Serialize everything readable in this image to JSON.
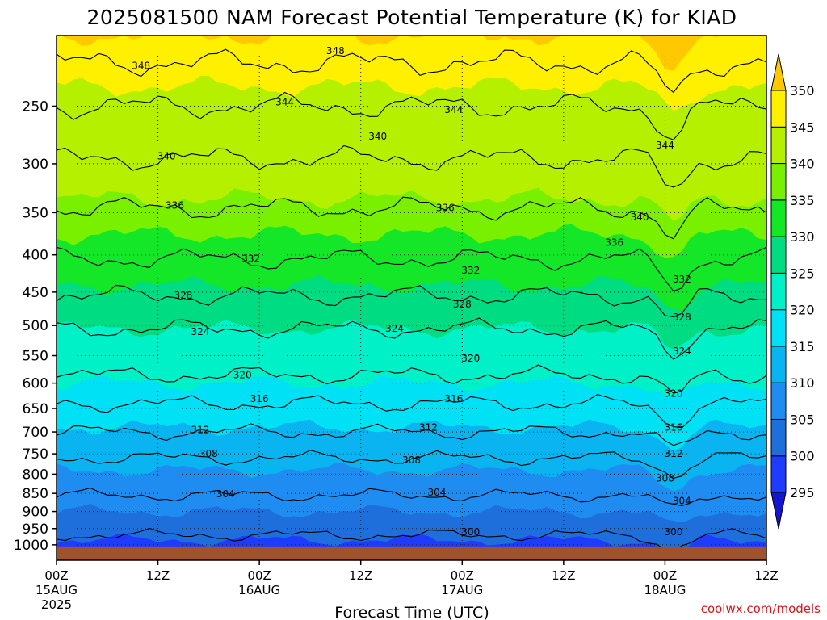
{
  "title": "2025081500 NAM Forecast Potential Temperature (K) for KIAD",
  "xlabel": "Forecast Time (UTC)",
  "credit": "coolwx.com/models",
  "chart_data": {
    "type": "contour",
    "title": "2025081500 NAM Forecast Potential Temperature (K) for KIAD",
    "xlabel": "Forecast Time (UTC)",
    "ylabel": "",
    "x_hours_range": [
      0,
      84
    ],
    "y_pressure_range": [
      1050,
      200
    ],
    "y_scale": "log",
    "y_ticks": [
      250,
      300,
      350,
      400,
      450,
      500,
      550,
      600,
      650,
      700,
      750,
      800,
      850,
      900,
      950,
      1000
    ],
    "x_ticks": [
      {
        "hour": 0,
        "label": "00Z",
        "date": "15AUG",
        "year": "2025"
      },
      {
        "hour": 12,
        "label": "12Z",
        "date": "",
        "year": ""
      },
      {
        "hour": 24,
        "label": "00Z",
        "date": "16AUG",
        "year": ""
      },
      {
        "hour": 36,
        "label": "12Z",
        "date": "",
        "year": ""
      },
      {
        "hour": 48,
        "label": "00Z",
        "date": "17AUG",
        "year": ""
      },
      {
        "hour": 60,
        "label": "12Z",
        "date": "",
        "year": ""
      },
      {
        "hour": 72,
        "label": "00Z",
        "date": "18AUG",
        "year": ""
      },
      {
        "hour": 84,
        "label": "12Z",
        "date": "",
        "year": ""
      }
    ],
    "grid": true,
    "colorbar": {
      "levels": [
        295,
        300,
        305,
        310,
        315,
        320,
        325,
        330,
        335,
        340,
        345,
        350
      ],
      "colors": [
        "#1414d2",
        "#1e3cff",
        "#1e6edc",
        "#1e8cf0",
        "#0ab4f0",
        "#00e1f5",
        "#00f0c8",
        "#00dc82",
        "#14e628",
        "#78f000",
        "#b4f000",
        "#fff000",
        "#ffc800"
      ]
    },
    "contour_interval": 4,
    "contours": [
      {
        "value": 300,
        "level_pressure": 970,
        "labels": [
          {
            "hour": 49,
            "pressure": 960
          },
          {
            "hour": 73,
            "pressure": 960
          }
        ]
      },
      {
        "value": 304,
        "level_pressure": 855,
        "labels": [
          {
            "hour": 20,
            "pressure": 852
          },
          {
            "hour": 45,
            "pressure": 848
          },
          {
            "hour": 74,
            "pressure": 870
          }
        ]
      },
      {
        "value": 308,
        "level_pressure": 760,
        "labels": [
          {
            "hour": 18,
            "pressure": 750
          },
          {
            "hour": 42,
            "pressure": 765
          },
          {
            "hour": 72,
            "pressure": 810
          }
        ]
      },
      {
        "value": 312,
        "level_pressure": 700,
        "labels": [
          {
            "hour": 17,
            "pressure": 695
          },
          {
            "hour": 44,
            "pressure": 690
          },
          {
            "hour": 73,
            "pressure": 750
          }
        ]
      },
      {
        "value": 316,
        "level_pressure": 640,
        "labels": [
          {
            "hour": 24,
            "pressure": 630
          },
          {
            "hour": 47,
            "pressure": 630
          },
          {
            "hour": 73,
            "pressure": 690
          }
        ]
      },
      {
        "value": 320,
        "level_pressure": 585,
        "labels": [
          {
            "hour": 22,
            "pressure": 585
          },
          {
            "hour": 49,
            "pressure": 555
          },
          {
            "hour": 73,
            "pressure": 620
          }
        ]
      },
      {
        "value": 324,
        "level_pressure": 505,
        "labels": [
          {
            "hour": 17,
            "pressure": 510
          },
          {
            "hour": 40,
            "pressure": 505
          },
          {
            "hour": 74,
            "pressure": 542
          }
        ]
      },
      {
        "value": 328,
        "level_pressure": 455,
        "labels": [
          {
            "hour": 15,
            "pressure": 455
          },
          {
            "hour": 48,
            "pressure": 468
          },
          {
            "hour": 74,
            "pressure": 487
          }
        ]
      },
      {
        "value": 332,
        "level_pressure": 405,
        "labels": [
          {
            "hour": 23,
            "pressure": 405
          },
          {
            "hour": 49,
            "pressure": 420
          },
          {
            "hour": 74,
            "pressure": 432
          }
        ]
      },
      {
        "value": 336,
        "level_pressure": 345,
        "labels": [
          {
            "hour": 14,
            "pressure": 342
          },
          {
            "hour": 46,
            "pressure": 345
          },
          {
            "hour": 66,
            "pressure": 385
          }
        ]
      },
      {
        "value": 340,
        "level_pressure": 295,
        "labels": [
          {
            "hour": 13,
            "pressure": 293
          },
          {
            "hour": 38,
            "pressure": 275
          },
          {
            "hour": 69,
            "pressure": 355
          }
        ]
      },
      {
        "value": 344,
        "level_pressure": 250,
        "labels": [
          {
            "hour": 27,
            "pressure": 247
          },
          {
            "hour": 47,
            "pressure": 253
          },
          {
            "hour": 72,
            "pressure": 283
          }
        ]
      },
      {
        "value": 348,
        "level_pressure": 218,
        "labels": [
          {
            "hour": 10,
            "pressure": 220
          },
          {
            "hour": 33,
            "pressure": 210
          }
        ]
      }
    ],
    "ground_pressure": 1005
  }
}
